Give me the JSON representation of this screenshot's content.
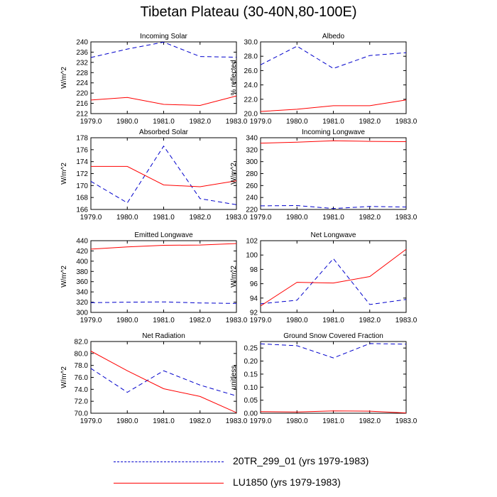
{
  "title": "Tibetan Plateau (30-40N,80-100E)",
  "colors": {
    "series_a": "#0000cc",
    "series_b": "#ff0000"
  },
  "legend": [
    {
      "label": "20TR_299_01 (yrs 1979-1983)",
      "style": "dashed",
      "color": "#0000cc"
    },
    {
      "label": "LU1850 (yrs 1979-1983)",
      "style": "solid",
      "color": "#ff0000"
    }
  ],
  "chart_data": [
    {
      "type": "line",
      "title": "Incoming Solar",
      "ylabel": "W/m^2",
      "x": [
        1979,
        1980,
        1981,
        1982,
        1983
      ],
      "xticks": [
        "1979.0",
        "1980.0",
        "1981.0",
        "1982.0",
        "1983.0"
      ],
      "ylim": [
        212,
        240
      ],
      "yticks": [
        "212",
        "216",
        "220",
        "224",
        "228",
        "232",
        "236",
        "240"
      ],
      "ytick_values": [
        212,
        216,
        220,
        224,
        228,
        232,
        236,
        240
      ],
      "series": [
        {
          "name": "20TR_299_01 (yrs 1979-1983)",
          "style": "dashed",
          "values": [
            233.9,
            237.2,
            239.9,
            234.3,
            234.0
          ]
        },
        {
          "name": "LU1850 (yrs 1979-1983)",
          "style": "solid",
          "values": [
            217.3,
            218.3,
            215.6,
            215.2,
            218.9
          ]
        }
      ]
    },
    {
      "type": "line",
      "title": "Albedo",
      "ylabel": "% reflected",
      "x": [
        1979,
        1980,
        1981,
        1982,
        1983
      ],
      "xticks": [
        "1979.0",
        "1980.0",
        "1981.0",
        "1982.0",
        "1983.0"
      ],
      "ylim": [
        20,
        30
      ],
      "yticks": [
        "20.0",
        "22.0",
        "24.0",
        "26.0",
        "28.0",
        "30.0"
      ],
      "ytick_values": [
        20,
        22,
        24,
        26,
        28,
        30
      ],
      "series": [
        {
          "name": "20TR_299_01 (yrs 1979-1983)",
          "style": "dashed",
          "values": [
            26.8,
            29.4,
            26.3,
            28.1,
            28.5
          ]
        },
        {
          "name": "LU1850 (yrs 1979-1983)",
          "style": "solid",
          "values": [
            20.3,
            20.6,
            21.1,
            21.1,
            21.9
          ]
        }
      ]
    },
    {
      "type": "line",
      "title": "Absorbed Solar",
      "ylabel": "W/m^2",
      "x": [
        1979,
        1980,
        1981,
        1982,
        1983
      ],
      "xticks": [
        "1979.0",
        "1980.0",
        "1981.0",
        "1982.0",
        "1983.0"
      ],
      "ylim": [
        166,
        178
      ],
      "yticks": [
        "166",
        "168",
        "170",
        "172",
        "174",
        "176",
        "178"
      ],
      "ytick_values": [
        166,
        168,
        170,
        172,
        174,
        176,
        178
      ],
      "series": [
        {
          "name": "20TR_299_01 (yrs 1979-1983)",
          "style": "dashed",
          "values": [
            170.7,
            167.1,
            176.6,
            167.8,
            166.8
          ]
        },
        {
          "name": "LU1850 (yrs 1979-1983)",
          "style": "solid",
          "values": [
            173.2,
            173.2,
            170.1,
            169.8,
            170.8
          ]
        }
      ]
    },
    {
      "type": "line",
      "title": "Incoming Longwave",
      "ylabel": "W/m^2",
      "x": [
        1979,
        1980,
        1981,
        1982,
        1983
      ],
      "xticks": [
        "1979.0",
        "1980.0",
        "1981.0",
        "1982.0",
        "1983.0"
      ],
      "ylim": [
        220,
        340
      ],
      "yticks": [
        "220",
        "240",
        "260",
        "280",
        "300",
        "320",
        "340"
      ],
      "ytick_values": [
        220,
        240,
        260,
        280,
        300,
        320,
        340
      ],
      "series": [
        {
          "name": "20TR_299_01 (yrs 1979-1983)",
          "style": "dashed",
          "values": [
            226,
            226.5,
            221.5,
            225,
            224
          ]
        },
        {
          "name": "LU1850 (yrs 1979-1983)",
          "style": "solid",
          "values": [
            331,
            332.5,
            335,
            334,
            333.5
          ]
        }
      ]
    },
    {
      "type": "line",
      "title": "Emitted Longwave",
      "ylabel": "W/m^2",
      "x": [
        1979,
        1980,
        1981,
        1982,
        1983
      ],
      "xticks": [
        "1979.0",
        "1980.0",
        "1981.0",
        "1982.0",
        "1983.0"
      ],
      "ylim": [
        300,
        440
      ],
      "yticks": [
        "300",
        "320",
        "340",
        "360",
        "380",
        "400",
        "420",
        "440"
      ],
      "ytick_values": [
        300,
        320,
        340,
        360,
        380,
        400,
        420,
        440
      ],
      "series": [
        {
          "name": "20TR_299_01 (yrs 1979-1983)",
          "style": "dashed",
          "values": [
            319,
            320,
            320.5,
            318.5,
            317.5
          ]
        },
        {
          "name": "LU1850 (yrs 1979-1983)",
          "style": "solid",
          "values": [
            423.5,
            428,
            431,
            431.5,
            434.5
          ]
        }
      ]
    },
    {
      "type": "line",
      "title": "Net Longwave",
      "ylabel": "W/m^2",
      "x": [
        1979,
        1980,
        1981,
        1982,
        1983
      ],
      "xticks": [
        "1979.0",
        "1980.0",
        "1981.0",
        "1982.0",
        "1983.0"
      ],
      "ylim": [
        92,
        102
      ],
      "yticks": [
        "92",
        "94",
        "96",
        "98",
        "100",
        "102"
      ],
      "ytick_values": [
        92,
        94,
        96,
        98,
        100,
        102
      ],
      "series": [
        {
          "name": "20TR_299_01 (yrs 1979-1983)",
          "style": "dashed",
          "values": [
            93.2,
            93.7,
            99.5,
            93.1,
            93.8
          ]
        },
        {
          "name": "LU1850 (yrs 1979-1983)",
          "style": "solid",
          "values": [
            92.9,
            96.2,
            96.1,
            97.0,
            100.8
          ]
        }
      ]
    },
    {
      "type": "line",
      "title": "Net Radiation",
      "ylabel": "W/m^2",
      "x": [
        1979,
        1980,
        1981,
        1982,
        1983
      ],
      "xticks": [
        "1979.0",
        "1980.0",
        "1981.0",
        "1982.0",
        "1983.0"
      ],
      "ylim": [
        70,
        82
      ],
      "yticks": [
        "70.0",
        "72.0",
        "74.0",
        "76.0",
        "78.0",
        "80.0",
        "82.0"
      ],
      "ytick_values": [
        70,
        72,
        74,
        76,
        78,
        80,
        82
      ],
      "series": [
        {
          "name": "20TR_299_01 (yrs 1979-1983)",
          "style": "dashed",
          "values": [
            77.5,
            73.5,
            77.1,
            74.7,
            72.9
          ]
        },
        {
          "name": "LU1850 (yrs 1979-1983)",
          "style": "solid",
          "values": [
            80.4,
            77.1,
            74.1,
            72.8,
            70.1
          ]
        }
      ]
    },
    {
      "type": "line",
      "title": "Ground Snow Covered Fraction",
      "ylabel": "unitless",
      "x": [
        1979,
        1980,
        1981,
        1982,
        1983
      ],
      "xticks": [
        "1979.0",
        "1980.0",
        "1981.0",
        "1982.0",
        "1983.0"
      ],
      "ylim": [
        0,
        0.275
      ],
      "yticks": [
        "0.00",
        "0.05",
        "0.10",
        "0.15",
        "0.20",
        "0.25"
      ],
      "ytick_values": [
        0,
        0.05,
        0.1,
        0.15,
        0.2,
        0.25
      ],
      "series": [
        {
          "name": "20TR_299_01 (yrs 1979-1983)",
          "style": "dashed",
          "values": [
            0.266,
            0.259,
            0.212,
            0.267,
            0.265
          ]
        },
        {
          "name": "LU1850 (yrs 1979-1983)",
          "style": "solid",
          "values": [
            0.006,
            0.005,
            0.009,
            0.008,
            0.001
          ]
        }
      ]
    }
  ]
}
